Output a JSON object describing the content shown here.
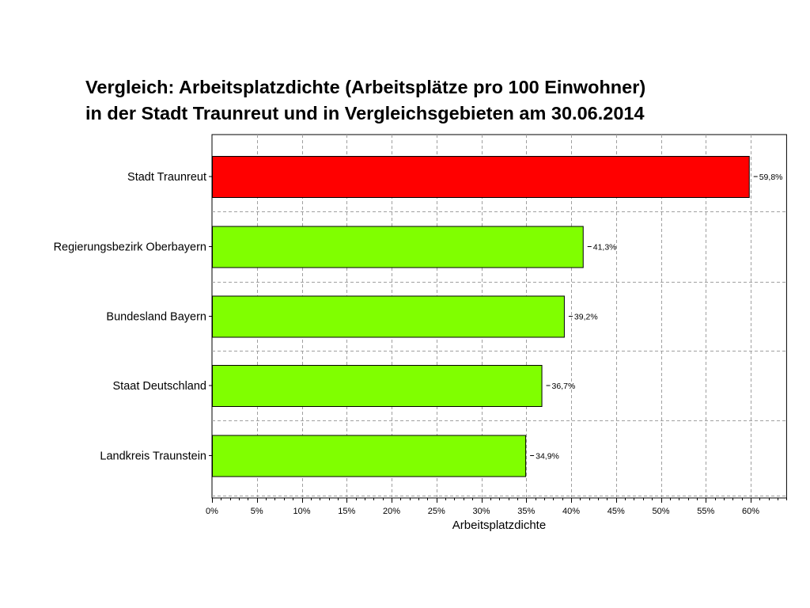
{
  "chart_data": {
    "type": "bar",
    "orientation": "horizontal",
    "title": [
      "Vergleich: Arbeitsplatzdichte (Arbeitsplätze pro 100 Einwohner)",
      "in der Stadt Traunreut und in Vergleichsgebieten am 30.06.2014"
    ],
    "xlabel": "Arbeitsplatzdichte",
    "ylabel": "",
    "categories": [
      "Stadt Traunreut",
      "Regierungsbezirk Oberbayern",
      "Bundesland Bayern",
      "Staat Deutschland",
      "Landkreis Traunstein"
    ],
    "values": [
      59.8,
      41.3,
      39.2,
      36.7,
      34.9
    ],
    "value_labels": [
      "59,8%",
      "41,3%",
      "39,2%",
      "36,7%",
      "34,9%"
    ],
    "bar_colors": [
      "#ff0000",
      "#80ff00",
      "#80ff00",
      "#80ff00",
      "#80ff00"
    ],
    "xlim": [
      0,
      64
    ],
    "x_ticks": [
      0,
      5,
      10,
      15,
      20,
      25,
      30,
      35,
      40,
      45,
      50,
      55,
      60
    ],
    "x_tick_labels": [
      "0%",
      "5%",
      "10%",
      "15%",
      "20%",
      "25%",
      "30%",
      "35%",
      "40%",
      "45%",
      "50%",
      "55%",
      "60%"
    ],
    "grid": true,
    "legend": "none"
  }
}
